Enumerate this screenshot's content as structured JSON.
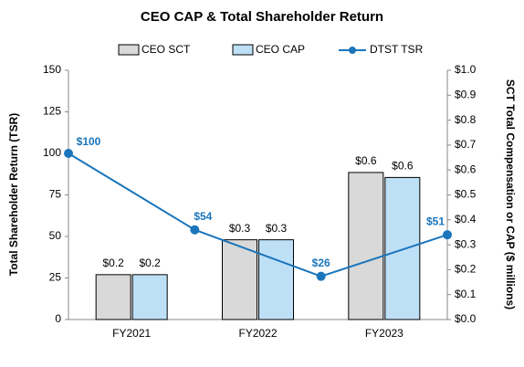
{
  "chart_data": [
    {
      "type": "bar",
      "title": "CEO CAP & Total Shareholder Return",
      "y_label": "Total Shareholder Return (TSR)",
      "y2_label": "SCT Total Compensation or CAP ($ millions)",
      "categories": [
        "FY2021",
        "FY2022",
        "FY2023"
      ],
      "series": [
        {
          "name": "CEO SCT",
          "color": "#d9d9d9",
          "axis": "y2",
          "values": [
            0.18,
            0.32,
            0.59
          ],
          "value_labels": [
            "$0.2",
            "$0.3",
            "$0.6"
          ]
        },
        {
          "name": "CEO CAP",
          "color": "#bde0f7",
          "axis": "y2",
          "values": [
            0.18,
            0.32,
            0.57
          ],
          "value_labels": [
            "$0.2",
            "$0.3",
            "$0.6"
          ]
        }
      ],
      "ylim": [
        0,
        150
      ],
      "yticks": [
        0,
        25,
        50,
        75,
        100,
        125,
        150
      ],
      "y2lim": [
        0,
        1.0
      ],
      "y2ticks": [
        {
          "value": 0,
          "label": "$0.0"
        },
        {
          "value": 0.1,
          "label": "$0.1"
        },
        {
          "value": 0.2,
          "label": "$0.2"
        },
        {
          "value": 0.3,
          "label": "$0.3"
        },
        {
          "value": 0.4,
          "label": "$0.4"
        },
        {
          "value": 0.5,
          "label": "$0.5"
        },
        {
          "value": 0.6,
          "label": "$0.6"
        },
        {
          "value": 0.7,
          "label": "$0.7"
        },
        {
          "value": 0.8,
          "label": "$0.8"
        },
        {
          "value": 0.9,
          "label": "$0.9"
        },
        {
          "value": 1.0,
          "label": "$1.0"
        }
      ],
      "grid": false
    },
    {
      "type": "line",
      "series": [
        {
          "name": "DTST TSR",
          "color": "#1b75bb",
          "values": [
            100,
            54,
            26,
            51
          ],
          "value_labels": [
            "$100",
            "$54",
            "$26",
            "$51"
          ]
        }
      ]
    }
  ]
}
